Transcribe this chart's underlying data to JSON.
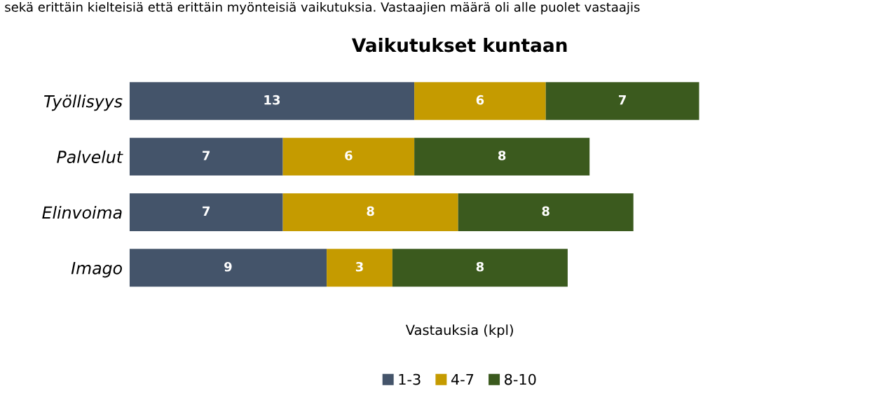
{
  "chart_data": {
    "type": "bar",
    "orientation": "horizontal",
    "stacked": true,
    "title": "Vaikutukset kuntaan",
    "xlabel": "Vastauksia (kpl)",
    "annotations": [
      "sekä erittäin kielteisiä että erittäin myönteisiä vaikutuksia. Vastaajien määrä oli alle puolet vastaajis"
    ],
    "categories": [
      "Työllisyys",
      "Palvelut",
      "Elinvoima",
      "Imago"
    ],
    "series": [
      {
        "name": "1-3",
        "color": "#44546a",
        "values": [
          13,
          7,
          7,
          9
        ]
      },
      {
        "name": "4-7",
        "color": "#c59b00",
        "values": [
          6,
          6,
          8,
          3
        ]
      },
      {
        "name": "8-10",
        "color": "#3b5a1e",
        "values": [
          7,
          8,
          8,
          8
        ]
      }
    ],
    "data_labels": true,
    "legend": "bottom",
    "grid": false,
    "tick_labels": "y"
  }
}
